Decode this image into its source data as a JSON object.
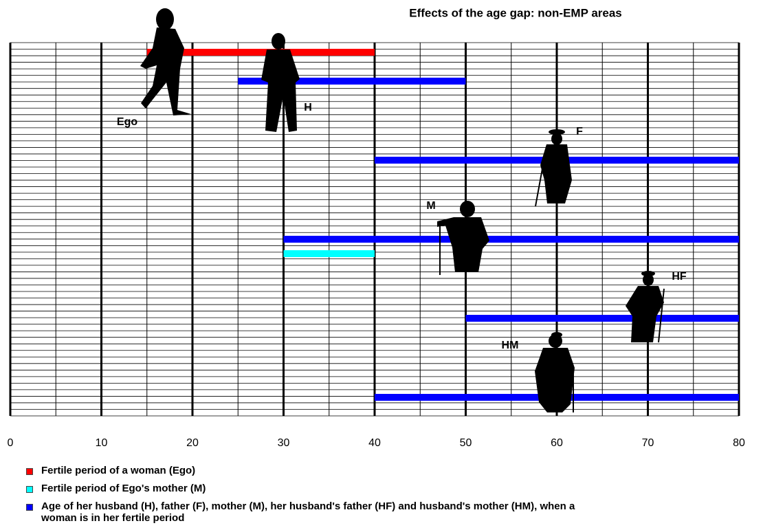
{
  "chart_data": {
    "type": "range-bar",
    "title": "Effects of the age gap: non-EMP areas",
    "xlim": [
      0,
      80
    ],
    "xticks": [
      0,
      10,
      20,
      30,
      40,
      50,
      60,
      70,
      80
    ],
    "xminorticks": [
      5,
      15,
      25,
      35,
      45,
      55,
      65,
      75
    ],
    "series": [
      {
        "name": "Fertile period of a woman (Ego)",
        "color": "#ff0000",
        "ranges": [
          [
            15,
            40
          ]
        ]
      },
      {
        "name": "Fertile period of Ego's mother (M)",
        "color": "#00ffff",
        "ranges": [
          [
            30,
            40
          ]
        ]
      },
      {
        "name": "Age of her husband (H), father (F), mother (M), her husband's father (HF) and husband's mother (HM), when a woman is in her fertile period",
        "color": "#0000ff",
        "ranges": [
          [
            25,
            50
          ],
          [
            40,
            80
          ],
          [
            30,
            80
          ],
          [
            50,
            80
          ],
          [
            40,
            80
          ]
        ]
      }
    ],
    "annotations": [
      "Ego",
      "H",
      "F",
      "M",
      "HF",
      "HM"
    ]
  }
}
